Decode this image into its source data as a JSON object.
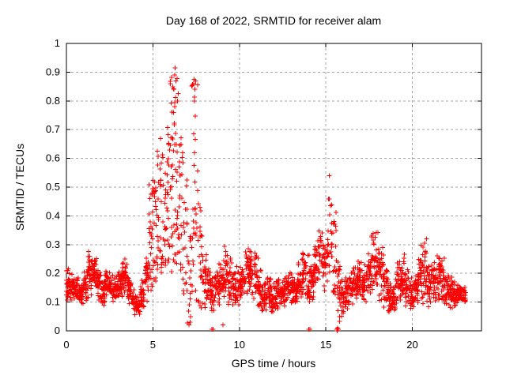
{
  "chart_data": {
    "type": "scatter",
    "title": "Day 168 of 2022, SRMTID for receiver alam",
    "xlabel": "GPS time / hours",
    "ylabel": "SRMTID / TECUs",
    "xlim": [
      0,
      24
    ],
    "ylim": [
      0,
      1
    ],
    "xticks": [
      0,
      5,
      10,
      15,
      20
    ],
    "xtick_labels": [
      "0",
      "5",
      "10",
      "15",
      "20"
    ],
    "yticks": [
      0,
      0.1,
      0.2,
      0.3,
      0.4,
      0.5,
      0.6,
      0.7,
      0.8,
      0.9,
      1
    ],
    "ytick_labels": [
      "0",
      "0.1",
      "0.2",
      "0.3",
      "0.4",
      "0.5",
      "0.6",
      "0.7",
      "0.8",
      "0.9",
      "1"
    ],
    "grid": true,
    "legend_position": "none",
    "marker": "plus",
    "marker_color": "#ff0000",
    "grid_color": "#a6a6a6",
    "axis_color": "#000000",
    "background_color": "#ffffff",
    "series": [
      {
        "name": "SRMTID",
        "envelope_bins": [
          [
            0.0,
            0.25,
            0.09,
            0.23,
            30
          ],
          [
            0.25,
            0.5,
            0.1,
            0.2,
            30
          ],
          [
            0.5,
            0.75,
            0.1,
            0.19,
            30
          ],
          [
            0.75,
            1.0,
            0.08,
            0.18,
            30
          ],
          [
            1.0,
            1.25,
            0.1,
            0.22,
            30
          ],
          [
            1.25,
            1.5,
            0.12,
            0.3,
            30
          ],
          [
            1.5,
            1.75,
            0.12,
            0.28,
            30
          ],
          [
            1.75,
            2.0,
            0.1,
            0.22,
            30
          ],
          [
            2.0,
            2.25,
            0.08,
            0.19,
            30
          ],
          [
            2.25,
            2.5,
            0.11,
            0.22,
            30
          ],
          [
            2.5,
            2.75,
            0.1,
            0.2,
            30
          ],
          [
            2.75,
            3.0,
            0.1,
            0.21,
            30
          ],
          [
            3.0,
            3.25,
            0.11,
            0.22,
            30
          ],
          [
            3.25,
            3.5,
            0.12,
            0.26,
            30
          ],
          [
            3.5,
            3.75,
            0.08,
            0.2,
            30
          ],
          [
            3.75,
            4.0,
            0.05,
            0.15,
            26
          ],
          [
            4.0,
            4.25,
            0.04,
            0.13,
            26
          ],
          [
            4.25,
            4.5,
            0.07,
            0.18,
            28
          ],
          [
            4.5,
            4.75,
            0.1,
            0.28,
            28
          ],
          [
            4.75,
            5.0,
            0.14,
            0.53,
            26
          ],
          [
            5.0,
            5.25,
            0.17,
            0.55,
            24
          ],
          [
            5.25,
            5.5,
            0.18,
            0.7,
            24
          ],
          [
            5.5,
            5.75,
            0.2,
            0.65,
            22
          ],
          [
            5.75,
            6.0,
            0.22,
            0.72,
            22
          ],
          [
            6.0,
            6.25,
            0.2,
            0.91,
            30
          ],
          [
            6.25,
            6.5,
            0.2,
            0.88,
            28
          ],
          [
            6.5,
            6.75,
            0.18,
            0.7,
            24
          ],
          [
            6.75,
            7.0,
            0.12,
            0.55,
            18
          ],
          [
            7.0,
            7.25,
            0.02,
            0.35,
            16
          ],
          [
            7.25,
            7.6,
            0.1,
            0.88,
            32
          ],
          [
            7.6,
            7.85,
            0.05,
            0.45,
            20
          ],
          [
            7.85,
            8.1,
            0.06,
            0.3,
            24
          ],
          [
            8.1,
            8.35,
            0.08,
            0.25,
            28
          ],
          [
            8.35,
            8.6,
            0.05,
            0.22,
            26
          ],
          [
            8.6,
            8.85,
            0.08,
            0.24,
            28
          ],
          [
            8.85,
            9.1,
            0.1,
            0.26,
            28
          ],
          [
            9.1,
            9.35,
            0.1,
            0.3,
            28
          ],
          [
            9.35,
            9.6,
            0.08,
            0.26,
            28
          ],
          [
            9.6,
            9.85,
            0.07,
            0.22,
            28
          ],
          [
            9.85,
            10.1,
            0.08,
            0.24,
            28
          ],
          [
            10.1,
            10.35,
            0.1,
            0.26,
            28
          ],
          [
            10.35,
            10.6,
            0.1,
            0.32,
            28
          ],
          [
            10.6,
            10.85,
            0.1,
            0.31,
            28
          ],
          [
            10.85,
            11.1,
            0.08,
            0.3,
            28
          ],
          [
            11.1,
            11.35,
            0.06,
            0.22,
            28
          ],
          [
            11.35,
            11.6,
            0.05,
            0.18,
            28
          ],
          [
            11.6,
            11.85,
            0.07,
            0.2,
            28
          ],
          [
            11.85,
            12.1,
            0.05,
            0.18,
            28
          ],
          [
            12.1,
            12.35,
            0.07,
            0.19,
            28
          ],
          [
            12.35,
            12.6,
            0.08,
            0.2,
            28
          ],
          [
            12.6,
            12.85,
            0.08,
            0.21,
            28
          ],
          [
            12.85,
            13.1,
            0.09,
            0.22,
            28
          ],
          [
            13.1,
            13.35,
            0.08,
            0.2,
            28
          ],
          [
            13.35,
            13.6,
            0.1,
            0.24,
            28
          ],
          [
            13.6,
            13.85,
            0.1,
            0.29,
            28
          ],
          [
            13.85,
            14.1,
            0.09,
            0.28,
            26
          ],
          [
            14.1,
            14.35,
            0.1,
            0.25,
            28
          ],
          [
            14.35,
            14.6,
            0.12,
            0.33,
            28
          ],
          [
            14.6,
            14.85,
            0.14,
            0.38,
            26
          ],
          [
            14.85,
            15.1,
            0.12,
            0.36,
            24
          ],
          [
            15.1,
            15.35,
            0.15,
            0.5,
            22
          ],
          [
            15.35,
            15.6,
            0.1,
            0.42,
            20
          ],
          [
            15.6,
            15.85,
            0.01,
            0.28,
            24
          ],
          [
            15.85,
            16.1,
            0.04,
            0.22,
            26
          ],
          [
            16.1,
            16.35,
            0.06,
            0.2,
            28
          ],
          [
            16.35,
            16.6,
            0.08,
            0.22,
            28
          ],
          [
            16.6,
            16.85,
            0.08,
            0.24,
            28
          ],
          [
            16.85,
            17.1,
            0.09,
            0.25,
            28
          ],
          [
            17.1,
            17.35,
            0.08,
            0.24,
            28
          ],
          [
            17.35,
            17.6,
            0.1,
            0.3,
            28
          ],
          [
            17.6,
            17.85,
            0.1,
            0.38,
            26
          ],
          [
            17.85,
            18.1,
            0.1,
            0.36,
            26
          ],
          [
            18.1,
            18.35,
            0.08,
            0.32,
            28
          ],
          [
            18.35,
            18.6,
            0.06,
            0.24,
            28
          ],
          [
            18.6,
            18.85,
            0.05,
            0.18,
            28
          ],
          [
            18.85,
            19.1,
            0.06,
            0.2,
            28
          ],
          [
            19.1,
            19.35,
            0.08,
            0.26,
            28
          ],
          [
            19.35,
            19.6,
            0.09,
            0.28,
            28
          ],
          [
            19.6,
            19.85,
            0.07,
            0.22,
            28
          ],
          [
            19.85,
            20.1,
            0.05,
            0.19,
            28
          ],
          [
            20.1,
            20.35,
            0.08,
            0.22,
            28
          ],
          [
            20.35,
            20.6,
            0.1,
            0.31,
            28
          ],
          [
            20.6,
            20.85,
            0.09,
            0.33,
            28
          ],
          [
            20.85,
            21.1,
            0.08,
            0.24,
            28
          ],
          [
            21.1,
            21.35,
            0.09,
            0.25,
            28
          ],
          [
            21.35,
            21.6,
            0.1,
            0.28,
            28
          ],
          [
            21.6,
            21.85,
            0.1,
            0.26,
            28
          ],
          [
            21.85,
            22.1,
            0.08,
            0.22,
            28
          ],
          [
            22.1,
            22.35,
            0.07,
            0.19,
            28
          ],
          [
            22.35,
            22.6,
            0.08,
            0.18,
            28
          ],
          [
            22.6,
            22.85,
            0.09,
            0.17,
            28
          ],
          [
            22.85,
            23.1,
            0.09,
            0.16,
            24
          ]
        ],
        "peak_points": [
          [
            6.29,
            0.915
          ],
          [
            6.27,
            0.89
          ],
          [
            6.33,
            0.87
          ],
          [
            6.22,
            0.84
          ],
          [
            7.38,
            0.875
          ],
          [
            7.35,
            0.86
          ],
          [
            7.42,
            0.84
          ],
          [
            7.4,
            0.8
          ],
          [
            15.2,
            0.54
          ]
        ],
        "near_zero_points": [
          [
            7.08,
            0.02
          ],
          [
            7.15,
            0.03
          ],
          [
            8.42,
            0.005
          ],
          [
            8.47,
            0.005
          ],
          [
            9.05,
            0.02
          ],
          [
            14.02,
            0.005
          ],
          [
            14.07,
            0.005
          ],
          [
            15.63,
            0.005
          ],
          [
            15.66,
            0.0
          ],
          [
            15.69,
            0.01
          ],
          [
            15.72,
            0.005
          ]
        ]
      }
    ]
  }
}
